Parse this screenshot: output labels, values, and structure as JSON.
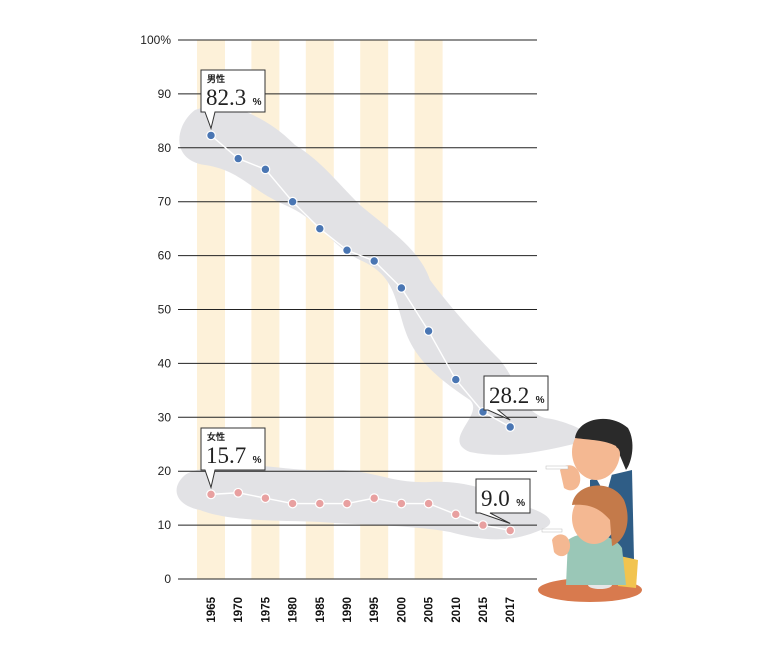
{
  "chart_data": {
    "type": "line",
    "x": [
      "1965",
      "1970",
      "1975",
      "1980",
      "1985",
      "1990",
      "1995",
      "2000",
      "2005",
      "2010",
      "2015",
      "2017"
    ],
    "y_ticks": [
      "100%",
      "90",
      "80",
      "70",
      "60",
      "50",
      "40",
      "30",
      "20",
      "10",
      "0"
    ],
    "ylim": [
      0,
      100
    ],
    "grid": true,
    "series": [
      {
        "name": "男性",
        "color": "#4a76b3",
        "values": [
          82.3,
          78,
          76,
          70,
          65,
          61,
          59,
          54,
          46,
          37,
          31,
          28.2
        ],
        "first_label": {
          "value": "82.3",
          "unit": "%"
        },
        "last_label": {
          "value": "28.2",
          "unit": "%"
        }
      },
      {
        "name": "女性",
        "color": "#e8a0a0",
        "values": [
          15.7,
          16,
          15,
          14,
          14,
          14,
          15,
          14,
          14,
          12,
          10,
          9.0
        ],
        "first_label": {
          "value": "15.7",
          "unit": "%"
        },
        "last_label": {
          "value": "9.0",
          "unit": "%"
        }
      }
    ]
  },
  "colors": {
    "band": "#fdf1d9",
    "smoke": "#e2e2e5",
    "grid": "#222222",
    "line": "#ffffff"
  },
  "illustration": {
    "name": "smoking-couple-illustration"
  }
}
